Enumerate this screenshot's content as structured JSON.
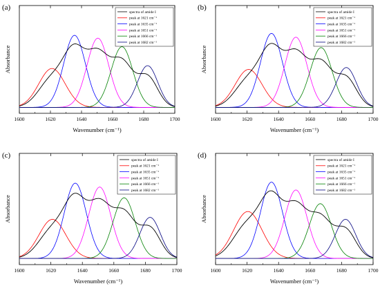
{
  "chart_data": [
    {
      "panel": "(a)",
      "type": "line",
      "xlabel": "Wavenumber (cm⁻¹)",
      "ylabel": "Absorbance",
      "xlim": [
        1600,
        1700
      ],
      "xticks": [
        1600,
        1620,
        1640,
        1660,
        1680,
        1700
      ],
      "y_ticks_shown": false,
      "legend_position": "top-right",
      "series": [
        {
          "name": "spectra of amide I",
          "color": "#000000",
          "kind": "sum"
        },
        {
          "name": "peak at 1621 cm⁻¹",
          "color": "#ff0000",
          "center": 1621,
          "amplitude": 0.41,
          "width": 8.5
        },
        {
          "name": "peak at 1635 cm⁻¹",
          "color": "#0000ff",
          "center": 1635.5,
          "amplitude": 0.76,
          "width": 7.0
        },
        {
          "name": "peak at 1651 cm⁻¹",
          "color": "#ff00ff",
          "center": 1650.5,
          "amplitude": 0.73,
          "width": 7.0
        },
        {
          "name": "peak at 1666 cm⁻¹",
          "color": "#008000",
          "center": 1666,
          "amplitude": 0.64,
          "width": 7.0
        },
        {
          "name": "peak at 1682 cm⁻¹",
          "color": "#000080",
          "center": 1682.5,
          "amplitude": 0.44,
          "width": 6.5
        }
      ]
    },
    {
      "panel": "(b)",
      "type": "line",
      "xlabel": "Wavenumber (cm⁻¹)",
      "ylabel": "Absorbance",
      "xlim": [
        1600,
        1700
      ],
      "xticks": [
        1600,
        1620,
        1640,
        1660,
        1680,
        1700
      ],
      "y_ticks_shown": false,
      "legend_position": "top-right",
      "series": [
        {
          "name": "spectra of amide I",
          "color": "#000000",
          "kind": "sum"
        },
        {
          "name": "peak at 1621 cm⁻¹",
          "color": "#ff0000",
          "center": 1621,
          "amplitude": 0.4,
          "width": 8.5
        },
        {
          "name": "peak at 1635 cm⁻¹",
          "color": "#0000ff",
          "center": 1635.5,
          "amplitude": 0.78,
          "width": 7.0
        },
        {
          "name": "peak at 1651 cm⁻¹",
          "color": "#ff00ff",
          "center": 1651,
          "amplitude": 0.74,
          "width": 7.0
        },
        {
          "name": "peak at 1666 cm⁻¹",
          "color": "#008000",
          "center": 1667,
          "amplitude": 0.63,
          "width": 7.0
        },
        {
          "name": "peak at 1682 cm⁻¹",
          "color": "#000080",
          "center": 1683,
          "amplitude": 0.42,
          "width": 6.5
        }
      ]
    },
    {
      "panel": "(c)",
      "type": "line",
      "xlabel": "Wavenumber (cm⁻¹)",
      "ylabel": "Absorbance",
      "xlim": [
        1600,
        1700
      ],
      "xticks": [
        1600,
        1620,
        1640,
        1660,
        1680,
        1700
      ],
      "y_ticks_shown": false,
      "legend_position": "top-right",
      "series": [
        {
          "name": "spectra of amide I",
          "color": "#000000",
          "kind": "sum"
        },
        {
          "name": "peak at 1621 cm⁻¹",
          "color": "#ff0000",
          "center": 1621,
          "amplitude": 0.4,
          "width": 8.5
        },
        {
          "name": "peak at 1635 cm⁻¹",
          "color": "#0000ff",
          "center": 1635.5,
          "amplitude": 0.77,
          "width": 7.0
        },
        {
          "name": "peak at 1651 cm⁻¹",
          "color": "#ff00ff",
          "center": 1651,
          "amplitude": 0.73,
          "width": 7.0
        },
        {
          "name": "peak at 1666 cm⁻¹",
          "color": "#008000",
          "center": 1666.5,
          "amplitude": 0.62,
          "width": 7.0
        },
        {
          "name": "peak at 1682 cm⁻¹",
          "color": "#000080",
          "center": 1683,
          "amplitude": 0.42,
          "width": 6.5
        }
      ]
    },
    {
      "panel": "(d)",
      "type": "line",
      "xlabel": "Wavenumber (cm⁻¹)",
      "ylabel": "Absorbance",
      "xlim": [
        1600,
        1700
      ],
      "xticks": [
        1600,
        1620,
        1640,
        1660,
        1680,
        1700
      ],
      "y_ticks_shown": false,
      "legend_position": "top-right",
      "series": [
        {
          "name": "spectra of amide I",
          "color": "#000000",
          "kind": "sum"
        },
        {
          "name": "peak at 1621 cm⁻¹",
          "color": "#ff0000",
          "center": 1620.5,
          "amplitude": 0.48,
          "width": 9.0
        },
        {
          "name": "peak at 1635 cm⁻¹",
          "color": "#0000ff",
          "center": 1635.5,
          "amplitude": 0.78,
          "width": 7.0
        },
        {
          "name": "peak at 1651 cm⁻¹",
          "color": "#ff00ff",
          "center": 1651,
          "amplitude": 0.7,
          "width": 7.0
        },
        {
          "name": "peak at 1666 cm⁻¹",
          "color": "#008000",
          "center": 1666.5,
          "amplitude": 0.56,
          "width": 7.0
        },
        {
          "name": "peak at 1682 cm⁻¹",
          "color": "#000080",
          "center": 1682.5,
          "amplitude": 0.4,
          "width": 6.5
        }
      ]
    }
  ]
}
